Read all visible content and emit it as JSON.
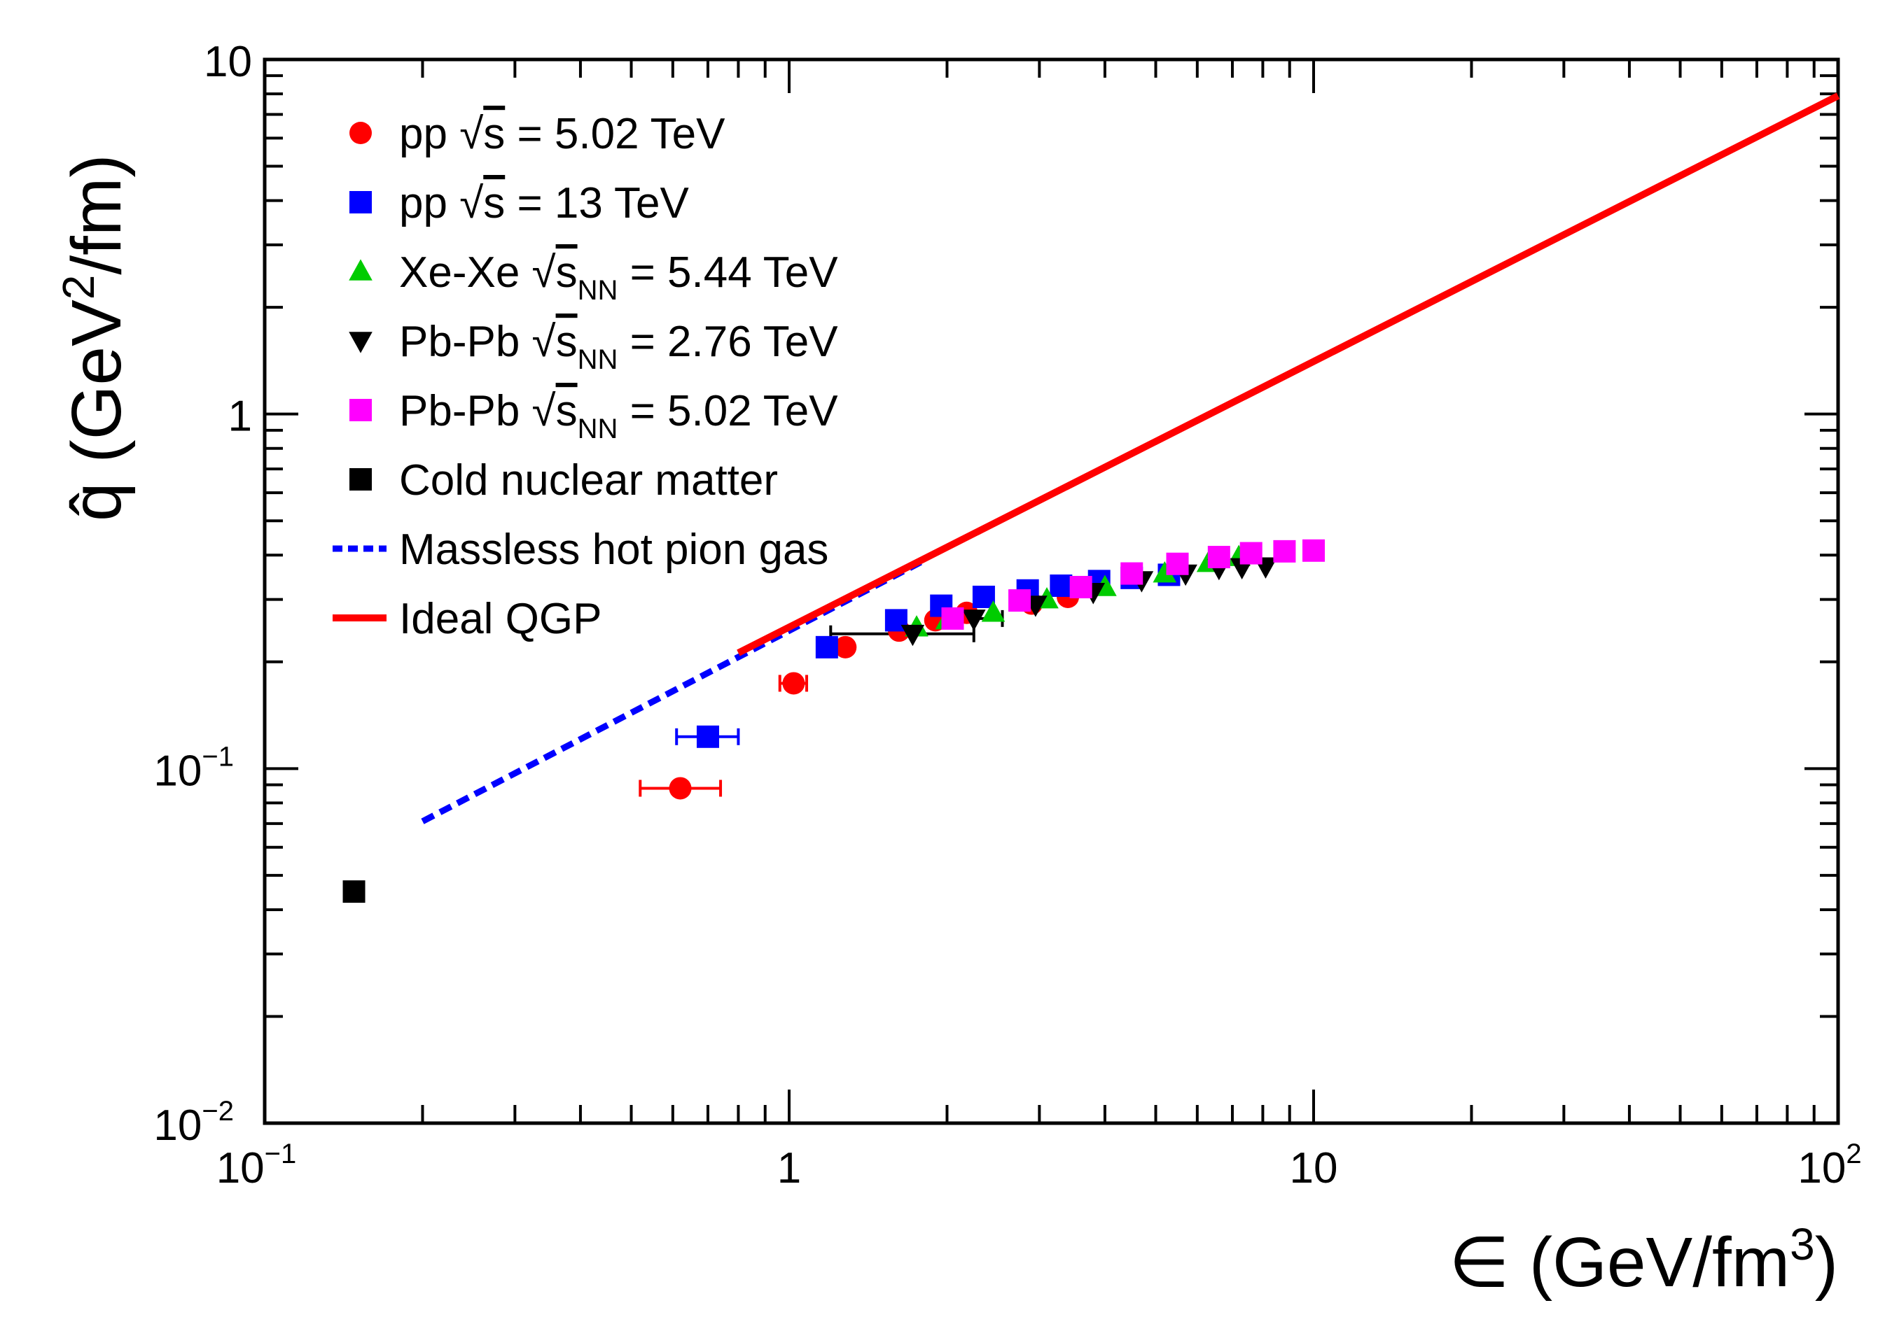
{
  "chart_data": {
    "type": "scatter",
    "xscale": "log",
    "yscale": "log",
    "xlim": [
      0.1,
      100
    ],
    "ylim": [
      0.01,
      10
    ],
    "x_ticks": [
      {
        "value": 0.1,
        "base": "10",
        "exp": "−1"
      },
      {
        "value": 1,
        "base": "1",
        "exp": ""
      },
      {
        "value": 10,
        "base": "10",
        "exp": ""
      },
      {
        "value": 100,
        "base": "10",
        "exp": "2"
      }
    ],
    "y_ticks": [
      {
        "value": 0.01,
        "base": "10",
        "exp": "−2"
      },
      {
        "value": 0.1,
        "base": "10",
        "exp": "−1"
      },
      {
        "value": 1,
        "base": "1",
        "exp": ""
      },
      {
        "value": 10,
        "base": "10",
        "exp": ""
      }
    ],
    "xlabel": {
      "main": "∈  (GeV/fm",
      "sup": "3",
      "close": ")"
    },
    "ylabel": {
      "main": "q̂ (GeV",
      "sup": "2",
      "close": "/fm)"
    },
    "series": [
      {
        "name": "pp √s = 5.02 TeV",
        "legend": {
          "pre": "pp ",
          "root": "s",
          "sub": "",
          "post": " = 5.02 TeV"
        },
        "marker": "circle",
        "color": "#ff0000",
        "points": [
          {
            "x": 0.62,
            "y": 0.088,
            "xerr": [
              0.52,
              0.74
            ]
          },
          {
            "x": 1.02,
            "y": 0.174,
            "xerr": [
              0.96,
              1.08
            ]
          },
          {
            "x": 1.28,
            "y": 0.22
          },
          {
            "x": 1.62,
            "y": 0.245
          },
          {
            "x": 1.9,
            "y": 0.262
          },
          {
            "x": 2.18,
            "y": 0.275
          },
          {
            "x": 2.9,
            "y": 0.292
          },
          {
            "x": 3.4,
            "y": 0.305
          }
        ]
      },
      {
        "name": "pp √s = 13 TeV",
        "legend": {
          "pre": "pp ",
          "root": "s",
          "sub": "",
          "post": " = 13 TeV"
        },
        "marker": "square",
        "color": "#0000ff",
        "points": [
          {
            "x": 0.7,
            "y": 0.123,
            "xerr": [
              0.61,
              0.8
            ]
          },
          {
            "x": 1.18,
            "y": 0.22
          },
          {
            "x": 1.6,
            "y": 0.262
          },
          {
            "x": 1.95,
            "y": 0.288
          },
          {
            "x": 2.35,
            "y": 0.305
          },
          {
            "x": 2.85,
            "y": 0.318
          },
          {
            "x": 3.3,
            "y": 0.328
          },
          {
            "x": 3.9,
            "y": 0.338
          },
          {
            "x": 4.5,
            "y": 0.345
          },
          {
            "x": 5.3,
            "y": 0.352
          }
        ]
      },
      {
        "name": "Xe-Xe √sNN = 5.44 TeV",
        "legend": {
          "pre": "Xe-Xe ",
          "root": "s",
          "sub": "NN",
          "post": " = 5.44 TeV"
        },
        "marker": "triangle-up",
        "color": "#00cc00",
        "points": [
          {
            "x": 1.75,
            "y": 0.25
          },
          {
            "x": 2.0,
            "y": 0.262
          },
          {
            "x": 2.45,
            "y": 0.275
          },
          {
            "x": 3.1,
            "y": 0.3
          },
          {
            "x": 4.0,
            "y": 0.325
          },
          {
            "x": 5.2,
            "y": 0.355
          },
          {
            "x": 6.3,
            "y": 0.38
          },
          {
            "x": 7.2,
            "y": 0.395
          }
        ]
      },
      {
        "name": "Pb-Pb √sNN = 2.76 TeV",
        "legend": {
          "pre": "Pb-Pb ",
          "root": "s",
          "sub": "NN",
          "post": " = 2.76 TeV"
        },
        "marker": "triangle-down",
        "color": "#000000",
        "points": [
          {
            "x": 1.72,
            "y": 0.24,
            "xerr": [
              1.2,
              2.25
            ]
          },
          {
            "x": 2.25,
            "y": 0.265,
            "xerr": [
              2.05,
              2.55
            ]
          },
          {
            "x": 2.95,
            "y": 0.29
          },
          {
            "x": 3.8,
            "y": 0.315
          },
          {
            "x": 4.7,
            "y": 0.34
          },
          {
            "x": 5.7,
            "y": 0.355
          },
          {
            "x": 6.6,
            "y": 0.368
          },
          {
            "x": 7.3,
            "y": 0.37
          },
          {
            "x": 8.1,
            "y": 0.372
          }
        ]
      },
      {
        "name": "Pb-Pb √sNN = 5.02 TeV",
        "legend": {
          "pre": "Pb-Pb ",
          "root": "s",
          "sub": "NN",
          "post": " = 5.02 TeV"
        },
        "marker": "square",
        "color": "#ff00ff",
        "points": [
          {
            "x": 2.05,
            "y": 0.265
          },
          {
            "x": 2.75,
            "y": 0.298
          },
          {
            "x": 3.6,
            "y": 0.325
          },
          {
            "x": 4.5,
            "y": 0.355
          },
          {
            "x": 5.5,
            "y": 0.378
          },
          {
            "x": 6.6,
            "y": 0.395
          },
          {
            "x": 7.6,
            "y": 0.405
          },
          {
            "x": 8.8,
            "y": 0.41
          },
          {
            "x": 10.0,
            "y": 0.412
          }
        ]
      },
      {
        "name": "Cold nuclear matter",
        "legend": {
          "pre": "Cold nuclear matter",
          "root": "",
          "sub": "",
          "post": ""
        },
        "marker": "square",
        "color": "#000000",
        "points": [
          {
            "x": 0.148,
            "y": 0.045
          }
        ]
      }
    ],
    "curves": [
      {
        "name": "Massless hot pion gas",
        "legend": "Massless hot pion gas",
        "style": "dashed",
        "color": "#0000ff",
        "x": [
          0.2,
          1.8
        ],
        "y": [
          0.071,
          0.385
        ]
      },
      {
        "name": "Ideal QGP",
        "legend": "Ideal QGP",
        "style": "solid",
        "color": "#ff0000",
        "x": [
          0.8,
          100
        ],
        "y": [
          0.212,
          7.9
        ]
      }
    ]
  }
}
